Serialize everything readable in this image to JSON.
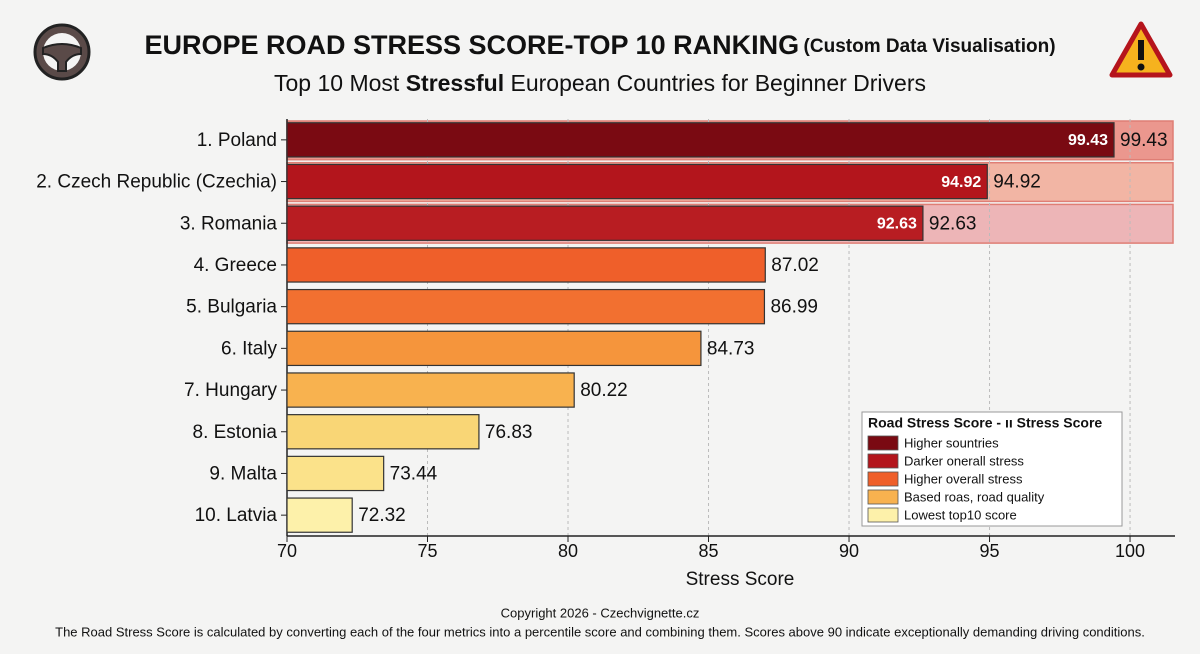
{
  "chart_data": {
    "type": "hbar",
    "title": "EUROPE ROAD STRESS SCORE-TOP 10 RANKING",
    "title_note": "(Custom Data Visualisation)",
    "subtitle": [
      "Top 10 Most ",
      "Stressful",
      " European Countries for Beginner Drivers"
    ],
    "categories": [
      "1. Poland",
      "2. Czech Republic (Czechia)",
      "3. Romania",
      "4. Greece",
      "5. Bulgaria",
      "6. Italy",
      "7. Hungary",
      "8. Estonia",
      "9. Malta",
      "10. Latvia"
    ],
    "values": [
      99.43,
      94.92,
      92.63,
      87.02,
      86.99,
      84.73,
      80.22,
      76.83,
      73.44,
      72.32
    ],
    "colors": [
      "#7a0a12",
      "#b3151c",
      "#b81d22",
      "#ef5f2a",
      "#f27030",
      "#f5953c",
      "#f8b24f",
      "#f9d676",
      "#fbe28a",
      "#fdf1aa"
    ],
    "row_backgrounds": [
      "#e9796d",
      "#f2a08a",
      "#eba0a3",
      null,
      null,
      null,
      null,
      null,
      null,
      null
    ],
    "xlim": [
      70,
      101.6
    ],
    "xticks": [
      70,
      75,
      80,
      85,
      90,
      95,
      100
    ],
    "grid": true,
    "xlabel": "Stress Score",
    "legend": {
      "title": "Road Stress Score - ıı Stress Score",
      "items": [
        {
          "label": "Higher sountries",
          "color": "#7a0a12"
        },
        {
          "label": "Darker onerall stress",
          "color": "#b3151c"
        },
        {
          "label": "Higher overall stress",
          "color": "#ef5f2a"
        },
        {
          "label": "Based roas, road quality",
          "color": "#f8b24f"
        },
        {
          "label": "Lowest top10 score",
          "color": "#fdf1aa"
        }
      ]
    },
    "copyright": "Copyright 2026 - Czechvignette.cz",
    "footnote": "The Road Stress Score is calculated by converting each of the four metrics into a percentile score and combining them. Scores above 90 indicate exceptionally demanding driving conditions."
  }
}
